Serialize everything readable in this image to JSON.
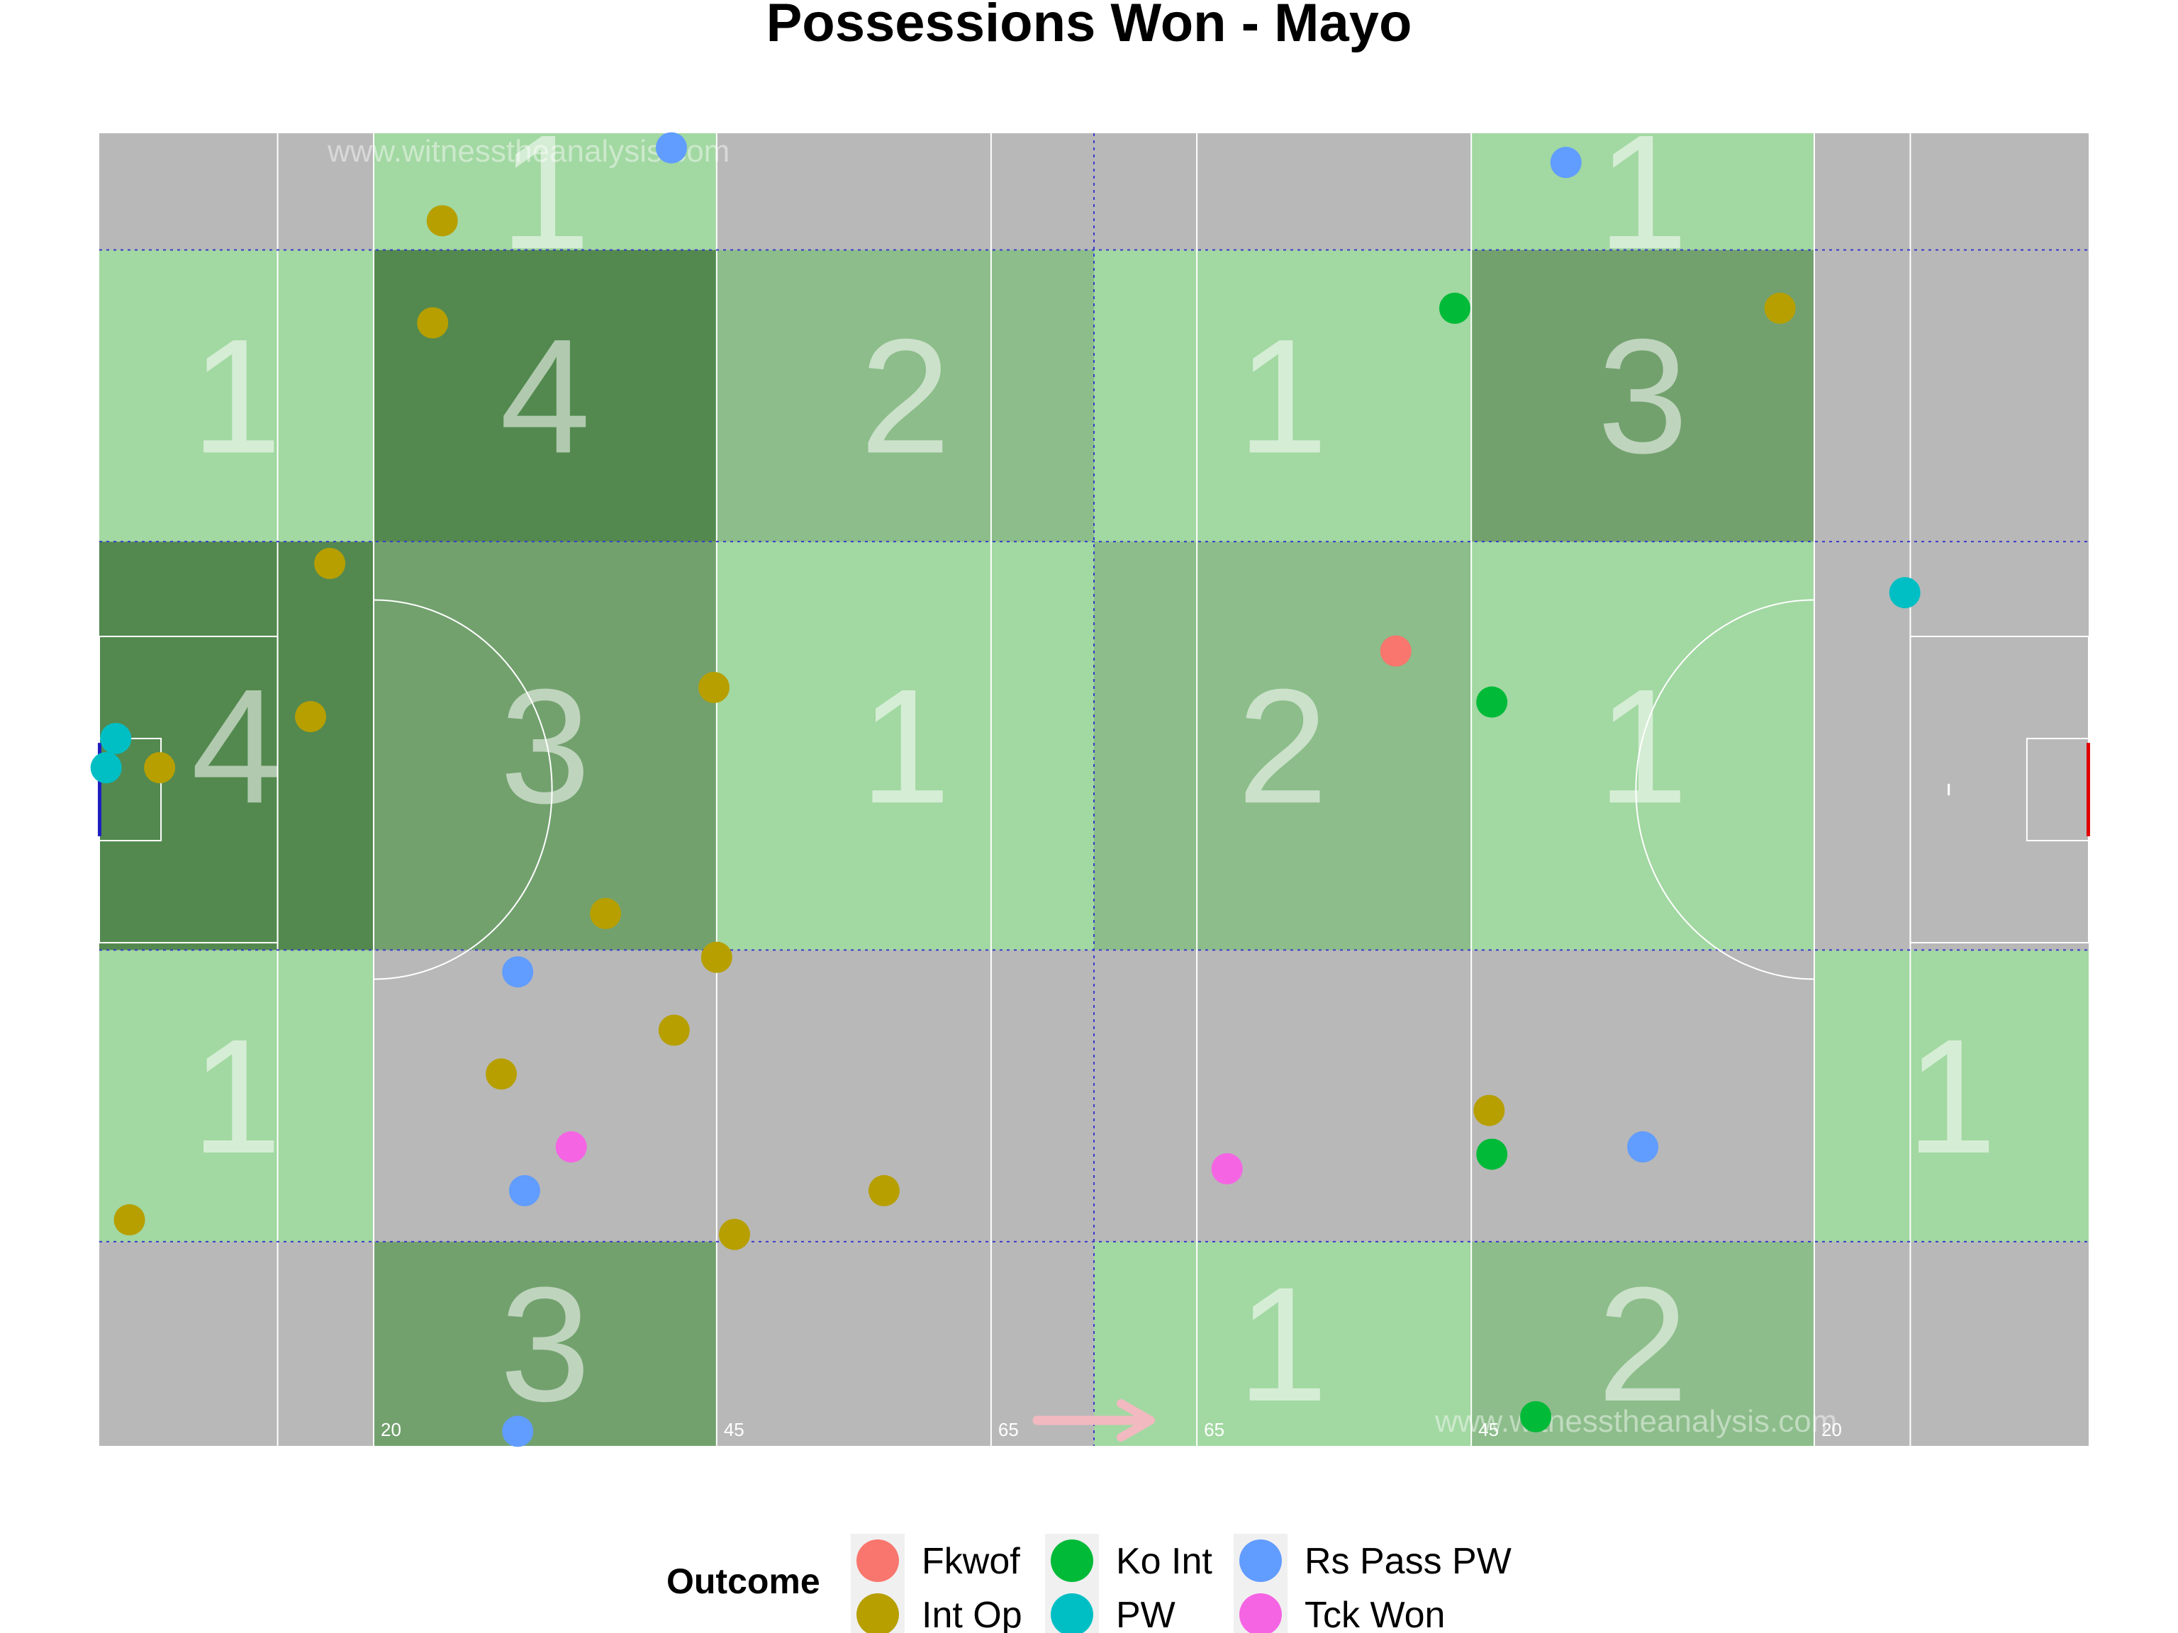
{
  "chart_data": {
    "type": "scatter",
    "title": "Possessions Won - Mayo",
    "watermark": "www.witnesstheanalysis.com",
    "pitch": {
      "length_m": 145,
      "width_m": 90,
      "distance_labels": [
        "20",
        "45",
        "65",
        "65",
        "45",
        "20"
      ],
      "distance_label_x_m": [
        20,
        45,
        65,
        80,
        100,
        125
      ],
      "direction_arrow": "right",
      "left_goal_color": "#1f1fbf",
      "right_goal_color": "#e00000",
      "grass_color": "#b8b8b8"
    },
    "zones": {
      "x_bounds_m": [
        0,
        20,
        45,
        72.5,
        100,
        125,
        145
      ],
      "y_bounds_m": [
        0,
        14,
        34,
        62,
        82,
        90
      ],
      "color_scale": {
        "0": "#b8b8b8",
        "1": "#a2d8a2",
        "2": "#8cbd8a",
        "3": "#72a16e",
        "4": "#53894f"
      },
      "counts": [
        [
          0,
          1,
          4,
          1,
          0
        ],
        [
          3,
          0,
          3,
          4,
          1
        ],
        [
          0,
          0,
          1,
          2,
          0
        ],
        [
          1,
          0,
          2,
          1,
          0
        ],
        [
          2,
          0,
          1,
          3,
          1
        ],
        [
          0,
          1,
          0,
          0,
          0
        ]
      ]
    },
    "legend": {
      "title": "Outcome",
      "placement": "bottom",
      "entries": [
        {
          "name": "Fkwof",
          "color": "#f8766d"
        },
        {
          "name": "Int Op",
          "color": "#b79f00"
        },
        {
          "name": "Ko Int",
          "color": "#00ba38"
        },
        {
          "name": "PW",
          "color": "#00bfc4"
        },
        {
          "name": "Rs Pass PW",
          "color": "#619cff"
        },
        {
          "name": "Tck Won",
          "color": "#f564e3"
        }
      ]
    },
    "points": [
      {
        "outcome": "Fkwof",
        "x": 94.5,
        "y": 54.5
      },
      {
        "outcome": "Int Op",
        "x": 25.0,
        "y": 84.0
      },
      {
        "outcome": "Int Op",
        "x": 24.3,
        "y": 77.0
      },
      {
        "outcome": "Int Op",
        "x": 16.8,
        "y": 60.5
      },
      {
        "outcome": "Int Op",
        "x": 15.4,
        "y": 50.0
      },
      {
        "outcome": "Int Op",
        "x": 4.4,
        "y": 46.5
      },
      {
        "outcome": "Int Op",
        "x": 44.8,
        "y": 52.0
      },
      {
        "outcome": "Int Op",
        "x": 36.9,
        "y": 36.5
      },
      {
        "outcome": "Int Op",
        "x": 45.0,
        "y": 33.5
      },
      {
        "outcome": "Int Op",
        "x": 41.9,
        "y": 28.5
      },
      {
        "outcome": "Int Op",
        "x": 29.3,
        "y": 25.5
      },
      {
        "outcome": "Int Op",
        "x": 2.2,
        "y": 15.5
      },
      {
        "outcome": "Int Op",
        "x": 46.3,
        "y": 14.5
      },
      {
        "outcome": "Int Op",
        "x": 57.2,
        "y": 17.5
      },
      {
        "outcome": "Int Op",
        "x": 101.3,
        "y": 23.0
      },
      {
        "outcome": "Int Op",
        "x": 122.5,
        "y": 78.0
      },
      {
        "outcome": "Ko Int",
        "x": 98.8,
        "y": 78.0
      },
      {
        "outcome": "Ko Int",
        "x": 101.5,
        "y": 51.0
      },
      {
        "outcome": "Ko Int",
        "x": 101.5,
        "y": 20.0
      },
      {
        "outcome": "Ko Int",
        "x": 104.7,
        "y": 2.0
      },
      {
        "outcome": "PW",
        "x": 131.6,
        "y": 58.5
      },
      {
        "outcome": "PW",
        "x": 1.2,
        "y": 48.5
      },
      {
        "outcome": "PW",
        "x": 0.5,
        "y": 46.5
      },
      {
        "outcome": "Rs Pass PW",
        "x": 41.7,
        "y": 89.0
      },
      {
        "outcome": "Rs Pass PW",
        "x": 106.9,
        "y": 88.0
      },
      {
        "outcome": "Rs Pass PW",
        "x": 30.5,
        "y": 32.5
      },
      {
        "outcome": "Rs Pass PW",
        "x": 31.0,
        "y": 17.5
      },
      {
        "outcome": "Rs Pass PW",
        "x": 112.5,
        "y": 20.5
      },
      {
        "outcome": "Rs Pass PW",
        "x": 30.5,
        "y": 1.0
      },
      {
        "outcome": "Tck Won",
        "x": 34.4,
        "y": 20.5
      },
      {
        "outcome": "Tck Won",
        "x": 82.2,
        "y": 19.0
      }
    ]
  }
}
